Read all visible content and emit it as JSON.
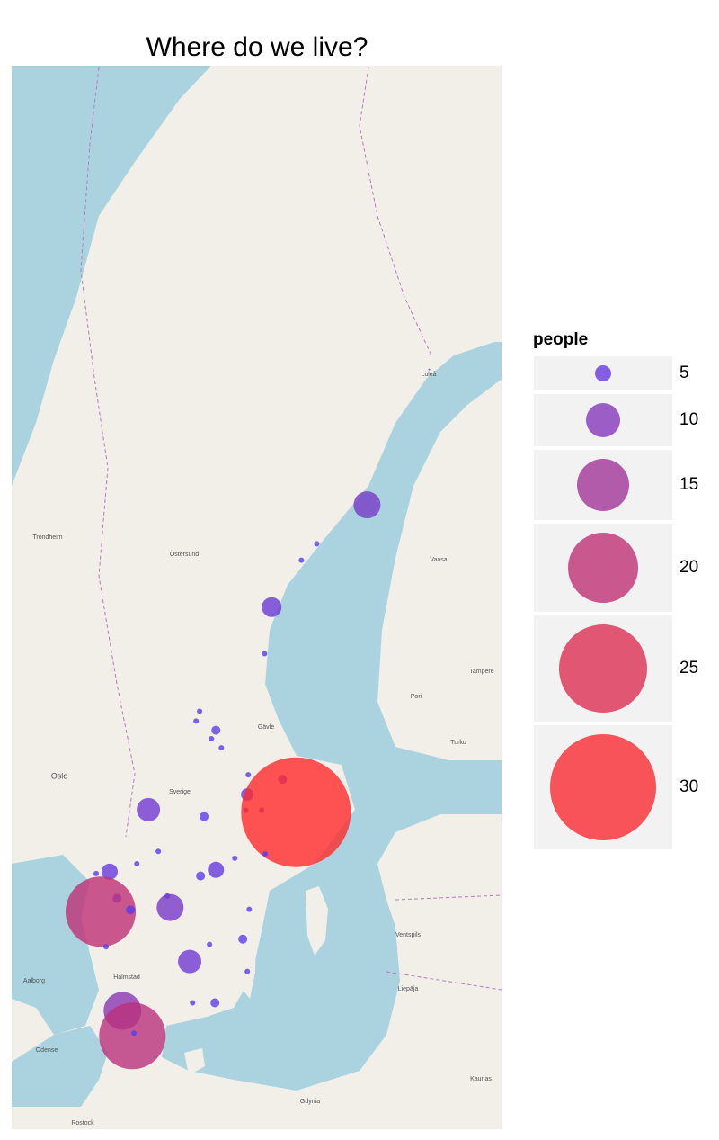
{
  "chart_data": {
    "type": "bubble",
    "title": "Where do we live?",
    "xlim": [
      9.2,
      24.5
    ],
    "ylim": [
      53.9,
      69.3
    ],
    "x": [
      22.24,
      20.3,
      18.73,
      18.25,
      17.32,
      17.1,
      15.07,
      14.96,
      15.58,
      15.44,
      15.75,
      17.66,
      16.59,
      16.56,
      16.51,
      17.01,
      18.08,
      13.47,
      15.21,
      13.78,
      13.11,
      17.12,
      16.17,
      15.58,
      15.1,
      12.26,
      11.84,
      12.49,
      14.06,
      11.98,
      12.91,
      14.15,
      16.62,
      16.42,
      15.38,
      12.15,
      14.76,
      16.56,
      15.55,
      14.85,
      12.66,
      12.97,
      13.02
    ],
    "y": [
      65.68,
      63.88,
      63.34,
      63.11,
      62.44,
      61.76,
      60.9,
      60.75,
      60.61,
      60.48,
      60.34,
      59.85,
      59.92,
      59.61,
      59.36,
      59.36,
      59.33,
      59.37,
      59.26,
      58.7,
      58.5,
      58.66,
      58.59,
      58.4,
      58.3,
      58.37,
      58.34,
      57.93,
      57.97,
      57.71,
      57.74,
      57.78,
      57.75,
      57.25,
      57.16,
      57.12,
      56.87,
      56.7,
      56.16,
      56.16,
      56.02,
      55.58,
      55.63
    ],
    "sizes": [
      1,
      8,
      2,
      2,
      6,
      2,
      2,
      2,
      3,
      2,
      2,
      3,
      2,
      4,
      2,
      2,
      31,
      7,
      3,
      2,
      2,
      2,
      2,
      5,
      3,
      5,
      2,
      3,
      2,
      20,
      3,
      8,
      2,
      3,
      2,
      2,
      7,
      2,
      3,
      2,
      11,
      19,
      2
    ],
    "colors": [
      "#4f3df8",
      "#ff2a2a"
    ],
    "legend_title": "people",
    "size_legend": [
      5,
      10,
      15,
      20,
      25,
      30
    ],
    "map_labels": [
      "Oslo",
      "Trondheim",
      "Östersund",
      "Luleå",
      "Vaasa",
      "Pori",
      "Tampere",
      "Turku",
      "Gävle",
      "Sverige",
      "Aalborg",
      "Halmstad",
      "Ventspils",
      "Liepāja",
      "Kaunas",
      "Gdynia",
      "Rostock",
      "Odense"
    ]
  }
}
